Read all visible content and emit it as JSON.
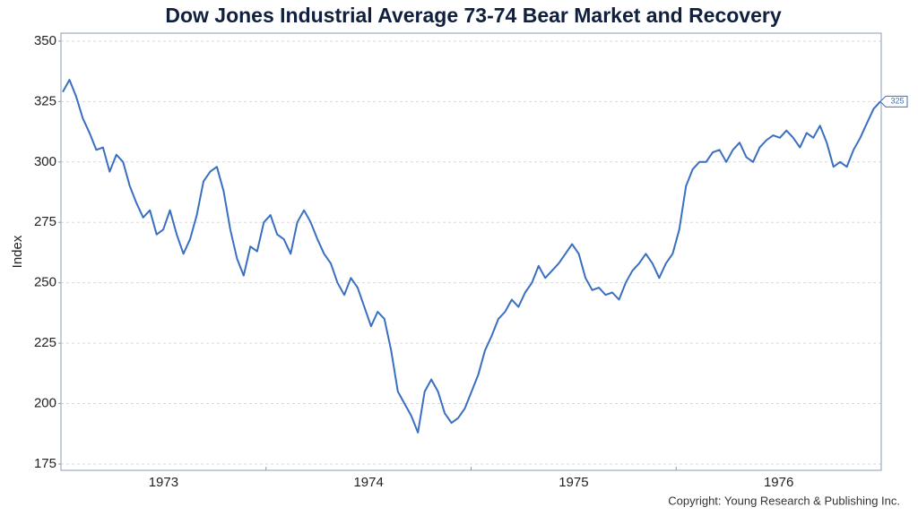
{
  "chart_data": {
    "type": "line",
    "title": "Dow Jones Industrial Average 73-74 Bear Market and Recovery",
    "y_label": "Index",
    "source": "Copyright: Young Research & Publishing Inc.",
    "year_labels": [
      "1973",
      "1974",
      "1975",
      "1976"
    ],
    "ylim": [
      172.4,
      353.3
    ],
    "yticks": [
      175,
      200,
      225,
      250,
      275,
      300,
      325,
      350
    ],
    "grid": true,
    "color": "#3a6fc0",
    "values": [
      329,
      334,
      327,
      318,
      312,
      305,
      306,
      296,
      303,
      300,
      290,
      283,
      277,
      280,
      270,
      272,
      280,
      270,
      262,
      268,
      278,
      292,
      296,
      298,
      288,
      272,
      260,
      253,
      265,
      263,
      275,
      278,
      270,
      268,
      262,
      275,
      280,
      275,
      268,
      262,
      258,
      250,
      245,
      252,
      248,
      240,
      232,
      238,
      235,
      222,
      205,
      200,
      195,
      188,
      205,
      210,
      205,
      196,
      192,
      194,
      198,
      205,
      212,
      222,
      228,
      235,
      238,
      243,
      240,
      246,
      250,
      257,
      252,
      255,
      258,
      262,
      266,
      262,
      252,
      247,
      248,
      245,
      246,
      243,
      250,
      255,
      258,
      262,
      258,
      252,
      258,
      262,
      272,
      290,
      297,
      300,
      300,
      304,
      305,
      300,
      305,
      308,
      302,
      300,
      306,
      309,
      311,
      310,
      313,
      310,
      306,
      312,
      310,
      315,
      308,
      298,
      300,
      298,
      305,
      310,
      316,
      322,
      325
    ]
  }
}
